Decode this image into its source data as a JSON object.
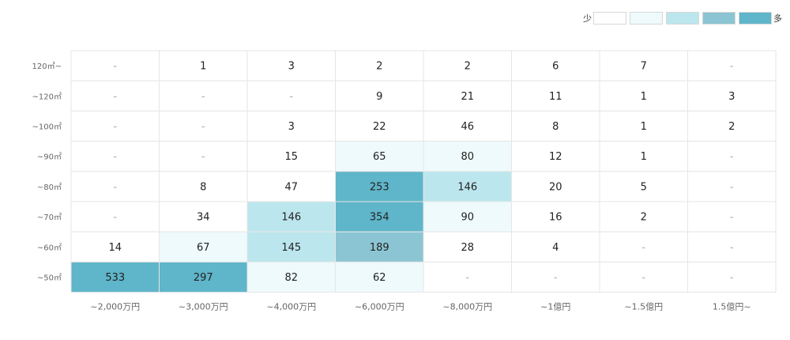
{
  "legend": {
    "low_label": "少",
    "high_label": "多",
    "colors": [
      "#ffffff",
      "#eefafc",
      "#bce6ee",
      "#8bc5d3",
      "#5fb5c9"
    ]
  },
  "chart_data": {
    "type": "heatmap",
    "title": "",
    "xlabel": "",
    "ylabel": "",
    "x_categories": [
      "~2,000万円",
      "~3,000万円",
      "~4,000万円",
      "~6,000万円",
      "~8,000万円",
      "~1億円",
      "~1.5億円",
      "1.5億円~"
    ],
    "y_categories": [
      "120㎡~",
      "~120㎡",
      "~100㎡",
      "~90㎡",
      "~80㎡",
      "~70㎡",
      "~60㎡",
      "~50㎡"
    ],
    "values": [
      [
        "-",
        "1",
        "3",
        "2",
        "2",
        "6",
        "7",
        "-"
      ],
      [
        "-",
        "-",
        "-",
        "9",
        "21",
        "11",
        "1",
        "3"
      ],
      [
        "-",
        "-",
        "3",
        "22",
        "46",
        "8",
        "1",
        "2"
      ],
      [
        "-",
        "-",
        "15",
        "65",
        "80",
        "12",
        "1",
        "-"
      ],
      [
        "-",
        "8",
        "47",
        "253",
        "146",
        "20",
        "5",
        "-"
      ],
      [
        "-",
        "34",
        "146",
        "354",
        "90",
        "16",
        "2",
        "-"
      ],
      [
        "14",
        "67",
        "145",
        "189",
        "28",
        "4",
        "-",
        "-"
      ],
      [
        "533",
        "297",
        "82",
        "62",
        "-",
        "-",
        "-",
        "-"
      ]
    ],
    "levels": [
      [
        0,
        0,
        0,
        0,
        0,
        0,
        0,
        0
      ],
      [
        0,
        0,
        0,
        0,
        0,
        0,
        0,
        0
      ],
      [
        0,
        0,
        0,
        0,
        0,
        0,
        0,
        0
      ],
      [
        0,
        0,
        0,
        1,
        1,
        0,
        0,
        0
      ],
      [
        0,
        0,
        0,
        4,
        2,
        0,
        0,
        0
      ],
      [
        0,
        0,
        2,
        4,
        1,
        0,
        0,
        0
      ],
      [
        0,
        1,
        2,
        3,
        0,
        0,
        0,
        0
      ],
      [
        4,
        4,
        1,
        1,
        0,
        0,
        0,
        0
      ]
    ],
    "grid": true
  }
}
